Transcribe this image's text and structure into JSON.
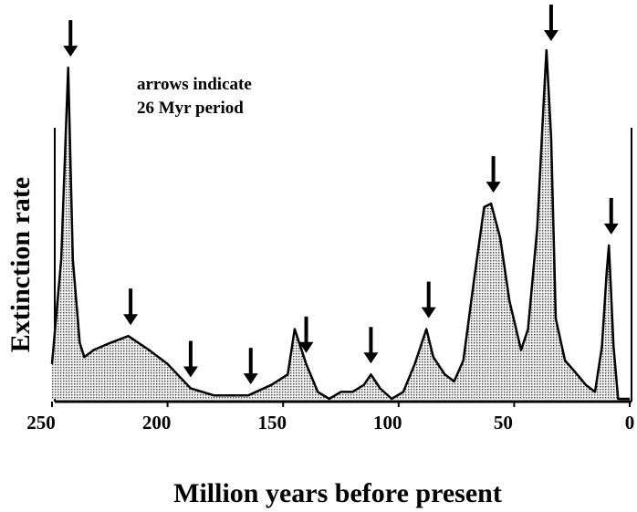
{
  "chart_data": {
    "type": "area",
    "annotation": [
      "arrows indicate",
      "26 Myr period"
    ],
    "xlabel": "Million years before present",
    "ylabel": "Extinction rate",
    "x": [
      250,
      246,
      243,
      241,
      238,
      236,
      232,
      225,
      217,
      208,
      200,
      190,
      180,
      165,
      155,
      148,
      145,
      140,
      135,
      130,
      125,
      120,
      115,
      112,
      108,
      103,
      98,
      93,
      88,
      85,
      80,
      76,
      72,
      67,
      63,
      60,
      56,
      52,
      47,
      44,
      40,
      37,
      36,
      34,
      32,
      28,
      24,
      19,
      15,
      12,
      10,
      9,
      7,
      5,
      0
    ],
    "values": [
      10,
      40,
      95,
      40,
      16,
      12,
      14,
      16,
      18,
      14,
      10,
      3,
      1,
      1,
      4,
      7,
      20,
      10,
      2,
      0,
      2,
      2,
      4,
      7,
      3,
      0,
      2,
      10,
      20,
      12,
      7,
      5,
      11,
      36,
      55,
      56,
      46,
      28,
      14,
      20,
      49,
      88,
      100,
      75,
      23,
      11,
      8,
      4,
      2,
      15,
      36,
      44,
      15,
      0,
      0
    ],
    "arrows": [
      242,
      216,
      190,
      164,
      140,
      112,
      87,
      59,
      34,
      8
    ],
    "xlim": [
      250,
      0
    ],
    "xticks": [
      250,
      200,
      150,
      100,
      50,
      0
    ],
    "ylim": [
      0,
      100
    ],
    "color": "#000000"
  }
}
